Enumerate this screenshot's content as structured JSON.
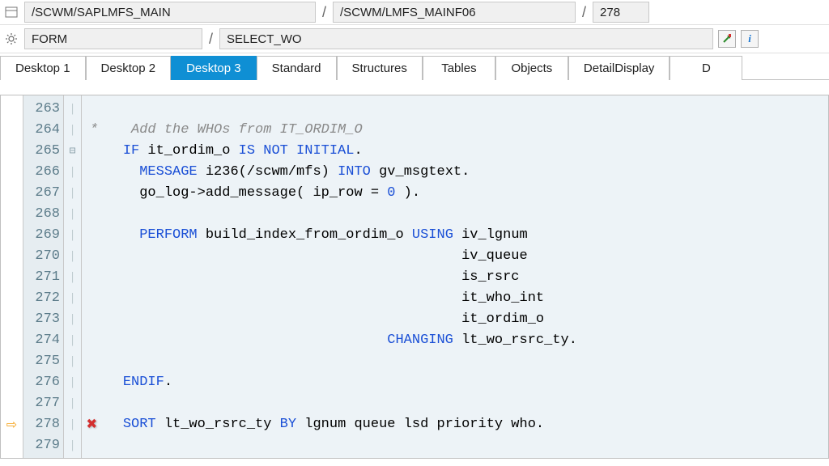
{
  "topbar": {
    "program": "/SCWM/SAPLMFS_MAIN",
    "include": "/SCWM/LMFS_MAINF06",
    "line": "278",
    "kind": "FORM",
    "routine": "SELECT_WO"
  },
  "tabs": [
    {
      "label": "Desktop 1",
      "active": false
    },
    {
      "label": "Desktop 2",
      "active": false
    },
    {
      "label": "Desktop 3",
      "active": true
    },
    {
      "label": "Standard",
      "active": false
    },
    {
      "label": "Structures",
      "active": false
    },
    {
      "label": "Tables",
      "active": false
    },
    {
      "label": "Objects",
      "active": false
    },
    {
      "label": "DetailDisplay",
      "active": false
    },
    {
      "label": "D",
      "active": false
    }
  ],
  "editor": {
    "lines": [
      {
        "num": 263,
        "marker": "",
        "fold": "|",
        "html": ""
      },
      {
        "num": 264,
        "marker": "",
        "fold": "|",
        "html": "<span class='cmt'>*    Add the WHOs from IT_ORDIM_O</span>"
      },
      {
        "num": 265,
        "marker": "",
        "fold": "⊟",
        "html": "    <span class='kw'>IF</span> it_ordim_o <span class='kw'>IS NOT INITIAL</span>."
      },
      {
        "num": 266,
        "marker": "",
        "fold": "|",
        "html": "      <span class='kw'>MESSAGE</span> i236(/scwm/mfs) <span class='kw'>INTO</span> gv_msgtext."
      },
      {
        "num": 267,
        "marker": "",
        "fold": "|",
        "html": "      go_log->add_message( ip_row = <span class='num'>0</span> )."
      },
      {
        "num": 268,
        "marker": "",
        "fold": "|",
        "html": ""
      },
      {
        "num": 269,
        "marker": "",
        "fold": "|",
        "html": "      <span class='kw'>PERFORM</span> build_index_from_ordim_o <span class='kw'>USING</span> iv_lgnum"
      },
      {
        "num": 270,
        "marker": "",
        "fold": "|",
        "html": "                                             iv_queue"
      },
      {
        "num": 271,
        "marker": "",
        "fold": "|",
        "html": "                                             is_rsrc"
      },
      {
        "num": 272,
        "marker": "",
        "fold": "|",
        "html": "                                             it_who_int"
      },
      {
        "num": 273,
        "marker": "",
        "fold": "|",
        "html": "                                             it_ordim_o"
      },
      {
        "num": 274,
        "marker": "",
        "fold": "|",
        "html": "                                    <span class='kw'>CHANGING</span> lt_wo_rsrc_ty."
      },
      {
        "num": 275,
        "marker": "",
        "fold": "|",
        "html": ""
      },
      {
        "num": 276,
        "marker": "",
        "fold": "|",
        "html": "    <span class='kw'>ENDIF</span>."
      },
      {
        "num": 277,
        "marker": "",
        "fold": "|",
        "html": ""
      },
      {
        "num": 278,
        "marker": "arrow",
        "fold": "|",
        "bp": true,
        "html": "    <span class='kw'>SORT</span> lt_wo_rsrc_ty <span class='kw'>BY</span> lgnum queue lsd priority who."
      },
      {
        "num": 279,
        "marker": "",
        "fold": "|",
        "html": ""
      }
    ]
  },
  "colors": {
    "tab_active_bg": "#0f8fd4",
    "code_bg": "#edf3f7",
    "keyword": "#1a4fd6",
    "comment": "#8a8a8a",
    "gutter_fg": "#5c7c8a",
    "bp_red": "#d32f2f",
    "arrow": "#f5a623"
  }
}
